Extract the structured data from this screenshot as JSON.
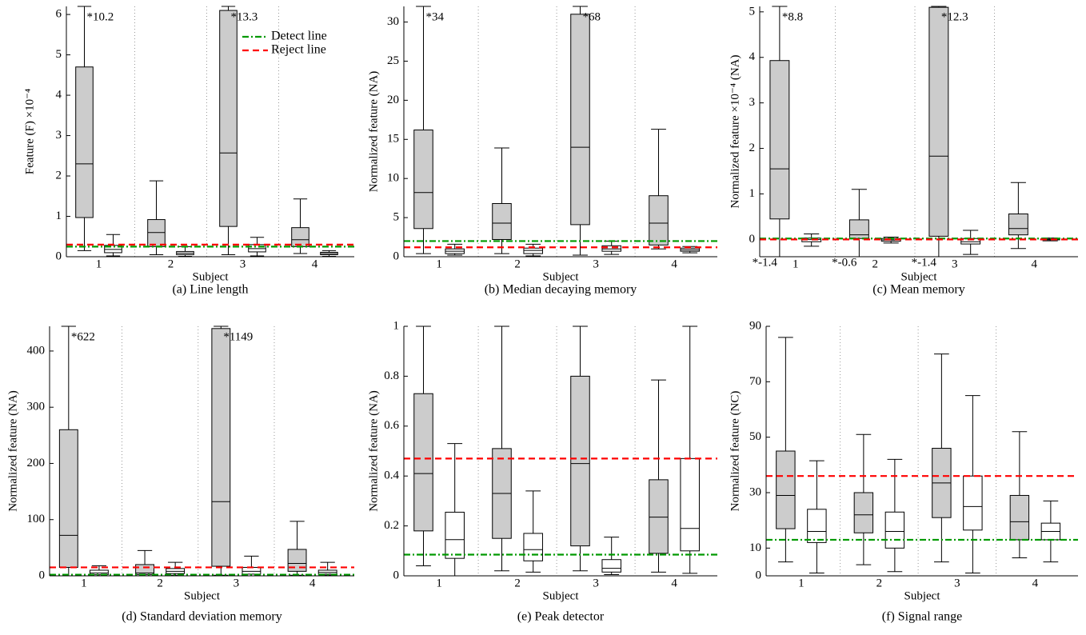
{
  "chart_data": [
    {
      "type": "box",
      "title": "(a) Line length",
      "xlabel": "Subject",
      "ylabel": "Feature (F) ×10⁻⁴",
      "categories": [
        "1",
        "2",
        "3",
        "4"
      ],
      "ylim": [
        0,
        6.2
      ],
      "yticks": [
        0,
        1,
        2,
        3,
        4,
        5,
        6
      ],
      "legend": "upper right",
      "series": [
        {
          "color": "#cccccc",
          "boxes": [
            {
              "whislo": 0.15,
              "q1": 0.97,
              "med": 2.3,
              "q3": 4.7,
              "whishi": 10.2,
              "whishi_label": "*10.2"
            },
            {
              "whislo": 0.05,
              "q1": 0.25,
              "med": 0.6,
              "q3": 0.92,
              "whishi": 1.88
            },
            {
              "whislo": 0.05,
              "q1": 0.75,
              "med": 2.57,
              "q3": 6.1,
              "whishi": 13.3,
              "whishi_label": "*13.3"
            },
            {
              "whislo": 0.08,
              "q1": 0.25,
              "med": 0.42,
              "q3": 0.72,
              "whishi": 1.43
            }
          ]
        },
        {
          "color": "#ffffff",
          "boxes": [
            {
              "whislo": 0.02,
              "q1": 0.1,
              "med": 0.18,
              "q3": 0.28,
              "whishi": 0.55
            },
            {
              "whislo": 0.01,
              "q1": 0.05,
              "med": 0.09,
              "q3": 0.13,
              "whishi": 0.25
            },
            {
              "whislo": 0.02,
              "q1": 0.12,
              "med": 0.2,
              "q3": 0.3,
              "whishi": 0.48
            },
            {
              "whislo": 0.01,
              "q1": 0.05,
              "med": 0.08,
              "q3": 0.11,
              "whishi": 0.15
            }
          ]
        }
      ],
      "lines": [
        {
          "name": "Detect line",
          "color": "#009900",
          "style": "dashdot",
          "value": 0.25
        },
        {
          "name": "Reject line",
          "color": "#ff0000",
          "style": "dashed",
          "value": 0.3
        }
      ]
    },
    {
      "type": "box",
      "title": "(b) Median decaying memory",
      "xlabel": "Subject",
      "ylabel": "Normalized feature (NA)",
      "categories": [
        "1",
        "2",
        "3",
        "4"
      ],
      "ylim": [
        0,
        32
      ],
      "yticks": [
        0,
        5,
        10,
        15,
        20,
        25,
        30
      ],
      "series": [
        {
          "color": "#cccccc",
          "boxes": [
            {
              "whislo": 0.4,
              "q1": 3.6,
              "med": 8.2,
              "q3": 16.2,
              "whishi": 34,
              "whishi_label": "*34"
            },
            {
              "whislo": 0.4,
              "q1": 2.2,
              "med": 4.3,
              "q3": 6.8,
              "whishi": 13.9
            },
            {
              "whislo": 0.2,
              "q1": 4.1,
              "med": 14,
              "q3": 31,
              "whishi": 68,
              "whishi_label": "*68"
            },
            {
              "whislo": 1.0,
              "q1": 1.5,
              "med": 4.3,
              "q3": 7.8,
              "whishi": 16.3
            }
          ]
        },
        {
          "color": "#ffffff",
          "boxes": [
            {
              "whislo": 0.2,
              "q1": 0.4,
              "med": 0.7,
              "q3": 1.0,
              "whishi": 1.6
            },
            {
              "whislo": 0.1,
              "q1": 0.4,
              "med": 0.8,
              "q3": 1.1,
              "whishi": 1.6
            },
            {
              "whislo": 0.3,
              "q1": 0.7,
              "med": 1.0,
              "q3": 1.4,
              "whishi": 2.0
            },
            {
              "whislo": 0.5,
              "q1": 0.7,
              "med": 0.9,
              "q3": 1.1,
              "whishi": 1.3
            }
          ]
        }
      ],
      "lines": [
        {
          "color": "#009900",
          "style": "dashdot",
          "value": 2
        },
        {
          "color": "#ff0000",
          "style": "dashed",
          "value": 1.2
        }
      ]
    },
    {
      "type": "box",
      "title": "(c) Mean memory",
      "xlabel": "Subject",
      "ylabel": "Normalized feature ×10⁻⁴ (NA)",
      "categories": [
        "1",
        "2",
        "3",
        "4"
      ],
      "ylim": [
        -0.38,
        5.12
      ],
      "yticks": [
        0,
        1,
        2,
        3,
        4,
        5
      ],
      "series": [
        {
          "color": "#cccccc",
          "boxes": [
            {
              "whislo": -1.4,
              "whislo_label": "*-1.4",
              "q1": 0.45,
              "med": 1.55,
              "q3": 3.93,
              "whishi": 8.8,
              "whishi_label": "*8.8"
            },
            {
              "whislo": -0.6,
              "whislo_label": "*-0.6",
              "q1": 0.02,
              "med": 0.1,
              "q3": 0.43,
              "whishi": 1.1
            },
            {
              "whislo": -1.4,
              "whislo_label": "*-1.4",
              "q1": 0.07,
              "med": 1.83,
              "q3": 5.1,
              "whishi": 12.3,
              "whishi_label": "*12.3"
            },
            {
              "whislo": -0.2,
              "q1": 0.1,
              "med": 0.24,
              "q3": 0.56,
              "whishi": 1.25
            }
          ]
        },
        {
          "color": "#ffffff",
          "boxes": [
            {
              "whislo": -0.15,
              "q1": -0.05,
              "med": 0,
              "q3": 0.03,
              "whishi": 0.12
            },
            {
              "whislo": -0.08,
              "q1": -0.04,
              "med": -0.01,
              "q3": 0.02,
              "whishi": 0.05
            },
            {
              "whislo": -0.33,
              "q1": -0.1,
              "med": -0.05,
              "q3": 0.02,
              "whishi": 0.2
            },
            {
              "whislo": -0.03,
              "q1": -0.01,
              "med": 0,
              "q3": 0.01,
              "whishi": 0.03
            }
          ]
        }
      ],
      "lines": [
        {
          "color": "#009900",
          "style": "dashdot",
          "value": 0.02
        },
        {
          "color": "#ff0000",
          "style": "dashed",
          "value": 0
        }
      ]
    },
    {
      "type": "box",
      "title": "(d) Standard deviation memory",
      "xlabel": "Subject",
      "ylabel": "Normalized feature (NA)",
      "categories": [
        "1",
        "2",
        "3",
        "4"
      ],
      "ylim": [
        0,
        444
      ],
      "yticks": [
        0,
        100,
        200,
        300,
        400
      ],
      "series": [
        {
          "color": "#cccccc",
          "boxes": [
            {
              "whislo": 0,
              "q1": 15,
              "med": 72,
              "q3": 260,
              "whishi": 622,
              "whishi_label": "*622"
            },
            {
              "whislo": 0,
              "q1": 2,
              "med": 5,
              "q3": 20,
              "whishi": 45
            },
            {
              "whislo": 1,
              "q1": 17,
              "med": 132,
              "q3": 440,
              "whishi": 1149,
              "whishi_label": "*1149"
            },
            {
              "whislo": 1,
              "q1": 8,
              "med": 22,
              "q3": 47,
              "whishi": 97
            }
          ]
        },
        {
          "color": "#ffffff",
          "boxes": [
            {
              "whislo": 0,
              "q1": 2,
              "med": 5,
              "q3": 10,
              "whishi": 18
            },
            {
              "whislo": 1,
              "q1": 4,
              "med": 8,
              "q3": 13,
              "whishi": 24
            },
            {
              "whislo": 0,
              "q1": 3,
              "med": 8,
              "q3": 15,
              "whishi": 35
            },
            {
              "whislo": 1,
              "q1": 3,
              "med": 6,
              "q3": 10,
              "whishi": 24
            }
          ]
        }
      ],
      "lines": [
        {
          "color": "#009900",
          "style": "dashdot",
          "value": 2
        },
        {
          "color": "#ff0000",
          "style": "dashed",
          "value": 15
        }
      ]
    },
    {
      "type": "box",
      "title": "(e) Peak detector",
      "xlabel": "Subject",
      "ylabel": "Normalized feature (NA)",
      "categories": [
        "1",
        "2",
        "3",
        "4"
      ],
      "ylim": [
        0,
        1
      ],
      "yticks": [
        0,
        0.2,
        0.4,
        0.6,
        0.8,
        1
      ],
      "series": [
        {
          "color": "#cccccc",
          "boxes": [
            {
              "whislo": 0.04,
              "q1": 0.18,
              "med": 0.41,
              "q3": 0.73,
              "whishi": 1.0
            },
            {
              "whislo": 0.02,
              "q1": 0.15,
              "med": 0.33,
              "q3": 0.51,
              "whishi": 1.0
            },
            {
              "whislo": 0.02,
              "q1": 0.12,
              "med": 0.45,
              "q3": 0.8,
              "whishi": 1.0
            },
            {
              "whislo": 0.015,
              "q1": 0.09,
              "med": 0.235,
              "q3": 0.385,
              "whishi": 0.785
            }
          ]
        },
        {
          "color": "#ffffff",
          "boxes": [
            {
              "whislo": 0,
              "q1": 0.07,
              "med": 0.145,
              "q3": 0.255,
              "whishi": 0.53
            },
            {
              "whislo": 0.015,
              "q1": 0.06,
              "med": 0.105,
              "q3": 0.17,
              "whishi": 0.34
            },
            {
              "whislo": 0.005,
              "q1": 0.015,
              "med": 0.03,
              "q3": 0.065,
              "whishi": 0.155
            },
            {
              "whislo": 0.01,
              "q1": 0.1,
              "med": 0.19,
              "q3": 0.47,
              "whishi": 1.0
            }
          ]
        }
      ],
      "lines": [
        {
          "color": "#009900",
          "style": "dashdot",
          "value": 0.085
        },
        {
          "color": "#ff0000",
          "style": "dashed",
          "value": 0.47
        }
      ]
    },
    {
      "type": "box",
      "title": "(f) Signal range",
      "xlabel": "Subject",
      "ylabel": "Normalized feature (NC)",
      "categories": [
        "1",
        "2",
        "3",
        "4"
      ],
      "ylim": [
        0,
        90
      ],
      "yticks": [
        0,
        10,
        30,
        50,
        70,
        90
      ],
      "series": [
        {
          "color": "#cccccc",
          "boxes": [
            {
              "whislo": 5,
              "q1": 17,
              "med": 29,
              "q3": 45,
              "whishi": 86
            },
            {
              "whislo": 4,
              "q1": 15.5,
              "med": 22,
              "q3": 30,
              "whishi": 51
            },
            {
              "whislo": 5,
              "q1": 21,
              "med": 33.5,
              "q3": 46,
              "whishi": 80
            },
            {
              "whislo": 6.5,
              "q1": 13,
              "med": 19.5,
              "q3": 29,
              "whishi": 52
            }
          ]
        },
        {
          "color": "#ffffff",
          "boxes": [
            {
              "whislo": 1,
              "q1": 12,
              "med": 16,
              "q3": 24,
              "whishi": 41.5
            },
            {
              "whislo": 1.5,
              "q1": 10,
              "med": 16,
              "q3": 23,
              "whishi": 42
            },
            {
              "whislo": 1,
              "q1": 16.5,
              "med": 25,
              "q3": 36,
              "whishi": 65
            },
            {
              "whislo": 5,
              "q1": 13,
              "med": 16,
              "q3": 19,
              "whishi": 27
            }
          ]
        }
      ],
      "lines": [
        {
          "color": "#009900",
          "style": "dashdot",
          "value": 13
        },
        {
          "color": "#ff0000",
          "style": "dashed",
          "value": 36
        }
      ]
    }
  ]
}
